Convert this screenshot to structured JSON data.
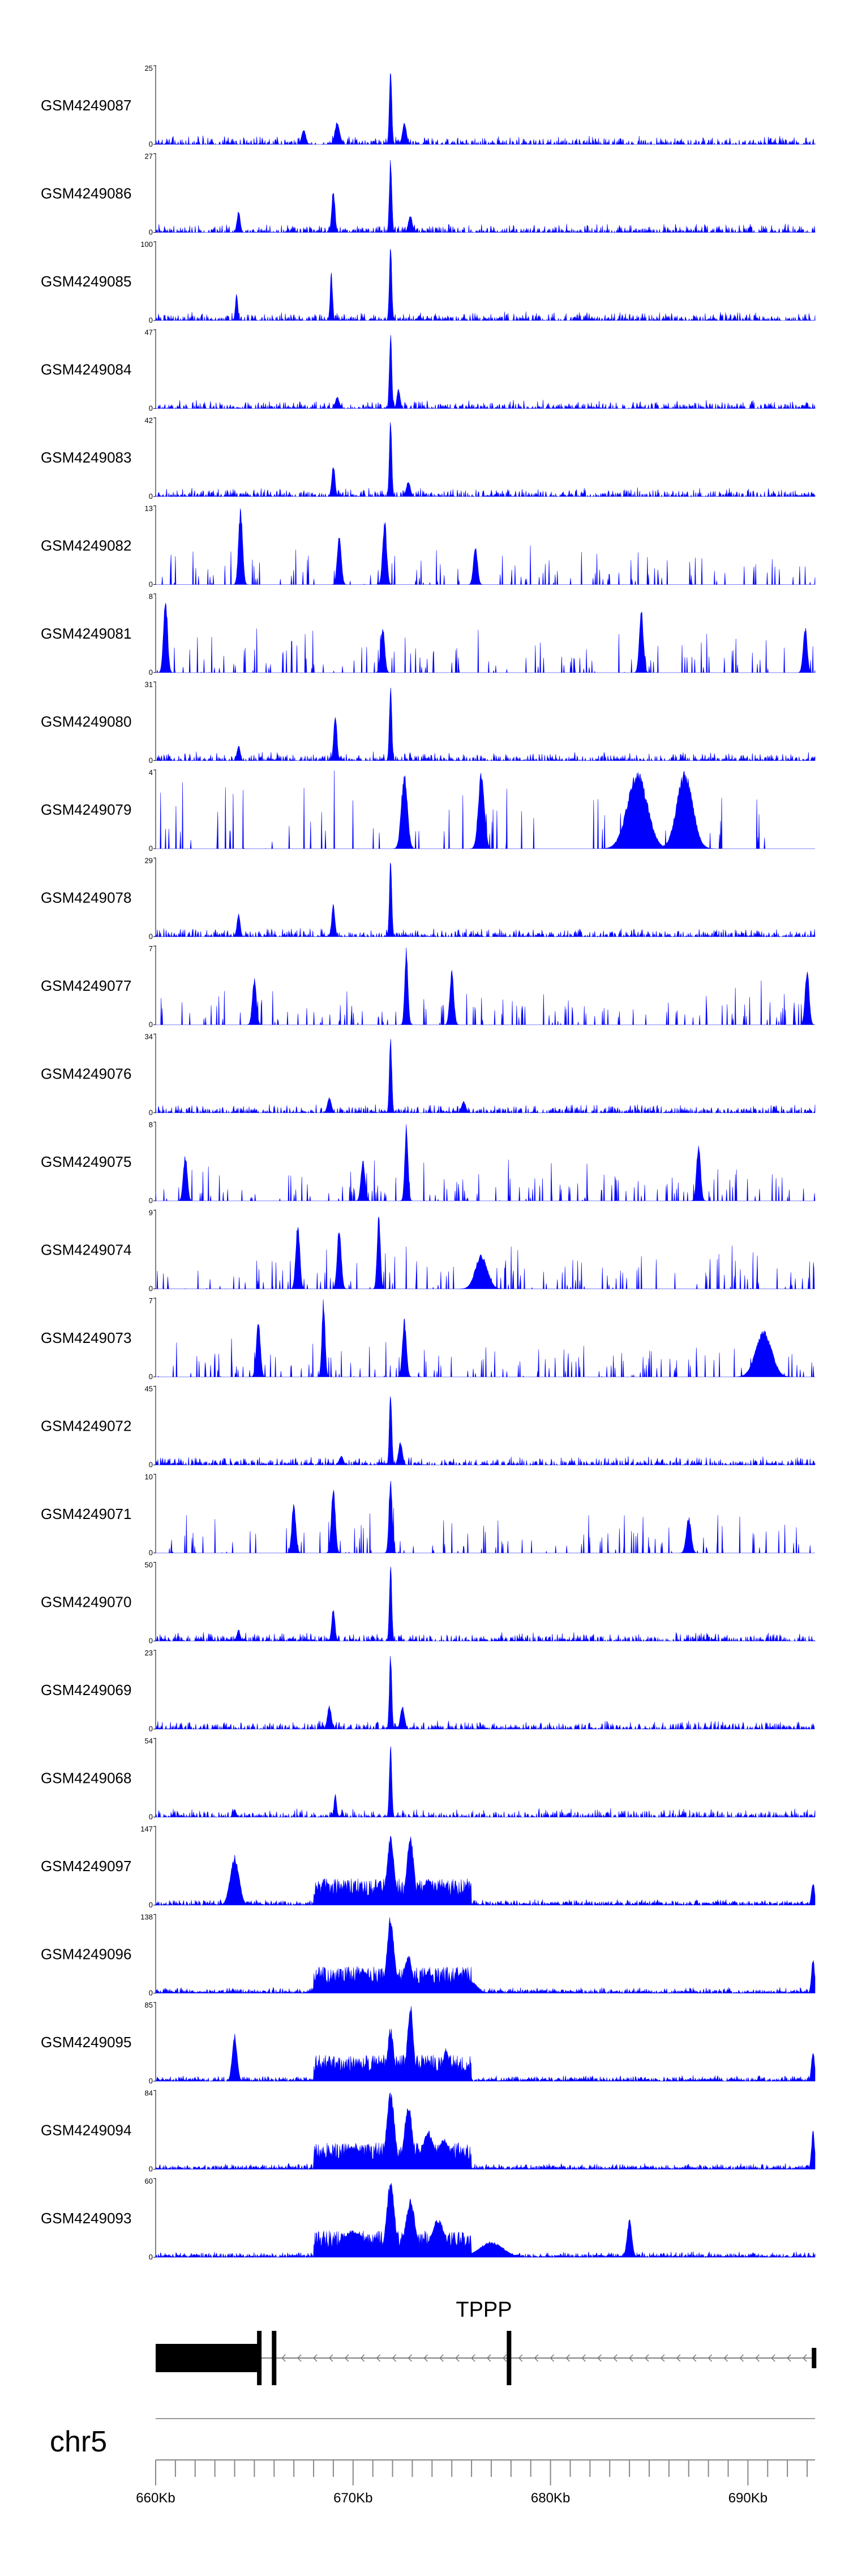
{
  "chart_data": {
    "type": "area",
    "chromosome": "chr5",
    "x_axis": {
      "unit": "Kb",
      "range_kb": [
        660,
        693.4
      ],
      "major_tick_labels": [
        "660Kb",
        "670Kb",
        "680Kb",
        "690Kb"
      ],
      "major_tick_values_kb": [
        660,
        670,
        680,
        690
      ]
    },
    "series_color": "#0000FF",
    "tracks": [
      {
        "name": "GSM4249087",
        "ymax": "25",
        "ymin": "0",
        "style": "dense",
        "peaks": [
          [
            671.9,
            1.0,
            0.06
          ],
          [
            669.2,
            0.3,
            0.12
          ],
          [
            672.6,
            0.28,
            0.1
          ],
          [
            667.5,
            0.2,
            0.1
          ]
        ]
      },
      {
        "name": "GSM4249086",
        "ymax": "27",
        "ymin": "0",
        "style": "dense",
        "peaks": [
          [
            671.9,
            1.0,
            0.06
          ],
          [
            669.0,
            0.55,
            0.08
          ],
          [
            664.2,
            0.28,
            0.08
          ],
          [
            672.9,
            0.22,
            0.1
          ]
        ]
      },
      {
        "name": "GSM4249085",
        "ymax": "100",
        "ymin": "0",
        "style": "dense",
        "peaks": [
          [
            671.9,
            1.0,
            0.06
          ],
          [
            668.9,
            0.62,
            0.06
          ],
          [
            664.1,
            0.35,
            0.06
          ]
        ]
      },
      {
        "name": "GSM4249084",
        "ymax": "47",
        "ymin": "0",
        "style": "dense",
        "peaks": [
          [
            671.9,
            1.0,
            0.06
          ],
          [
            672.3,
            0.25,
            0.08
          ],
          [
            669.2,
            0.15,
            0.1
          ]
        ]
      },
      {
        "name": "GSM4249083",
        "ymax": "42",
        "ymin": "0",
        "style": "dense",
        "peaks": [
          [
            671.9,
            1.0,
            0.06
          ],
          [
            669.0,
            0.42,
            0.08
          ],
          [
            672.8,
            0.2,
            0.1
          ]
        ]
      },
      {
        "name": "GSM4249082",
        "ymax": "13",
        "ymin": "0",
        "style": "sparse",
        "peaks": [
          [
            664.3,
            1.0,
            0.1
          ],
          [
            671.6,
            0.85,
            0.1
          ],
          [
            669.3,
            0.65,
            0.1
          ],
          [
            676.2,
            0.5,
            0.1
          ]
        ]
      },
      {
        "name": "GSM4249081",
        "ymax": "8",
        "ymin": "0",
        "style": "sparse",
        "peaks": [
          [
            660.5,
            1.0,
            0.1
          ],
          [
            684.6,
            0.82,
            0.1
          ],
          [
            692.9,
            0.6,
            0.1
          ],
          [
            671.5,
            0.6,
            0.1
          ]
        ]
      },
      {
        "name": "GSM4249080",
        "ymax": "31",
        "ymin": "0",
        "style": "dense",
        "peaks": [
          [
            671.9,
            1.0,
            0.06
          ],
          [
            669.1,
            0.62,
            0.08
          ],
          [
            664.2,
            0.2,
            0.08
          ]
        ]
      },
      {
        "name": "GSM4249079",
        "ymax": "4",
        "ymin": "0",
        "style": "spikes",
        "end_kb": 691.0,
        "peaks": [
          [
            684.4,
            1.0,
            0.5
          ],
          [
            686.8,
            1.0,
            0.4
          ],
          [
            672.6,
            1.0,
            0.15
          ],
          [
            676.5,
            1.0,
            0.15
          ]
        ]
      },
      {
        "name": "GSM4249078",
        "ymax": "29",
        "ymin": "0",
        "style": "dense",
        "peaks": [
          [
            671.9,
            1.0,
            0.06
          ],
          [
            669.0,
            0.42,
            0.08
          ],
          [
            664.2,
            0.3,
            0.08
          ]
        ]
      },
      {
        "name": "GSM4249077",
        "ymax": "7",
        "ymin": "0",
        "style": "sparse",
        "peaks": [
          [
            672.7,
            1.0,
            0.08
          ],
          [
            693.0,
            0.75,
            0.1
          ],
          [
            675.0,
            0.7,
            0.1
          ],
          [
            665.0,
            0.6,
            0.1
          ]
        ]
      },
      {
        "name": "GSM4249076",
        "ymax": "34",
        "ymin": "0",
        "style": "dense",
        "peaks": [
          [
            671.9,
            1.0,
            0.06
          ],
          [
            668.8,
            0.2,
            0.1
          ],
          [
            675.6,
            0.15,
            0.1
          ]
        ]
      },
      {
        "name": "GSM4249075",
        "ymax": "8",
        "ymin": "0",
        "style": "sparse",
        "peaks": [
          [
            672.7,
            1.0,
            0.08
          ],
          [
            687.5,
            0.75,
            0.1
          ],
          [
            661.5,
            0.6,
            0.1
          ],
          [
            670.5,
            0.55,
            0.1
          ]
        ]
      },
      {
        "name": "GSM4249074",
        "ymax": "9",
        "ymin": "0",
        "style": "sparse",
        "peaks": [
          [
            671.3,
            1.0,
            0.08
          ],
          [
            667.2,
            0.85,
            0.1
          ],
          [
            669.3,
            0.82,
            0.1
          ],
          [
            676.5,
            0.45,
            0.3
          ]
        ]
      },
      {
        "name": "GSM4249073",
        "ymax": "7",
        "ymin": "0",
        "style": "sparse",
        "peaks": [
          [
            668.5,
            1.0,
            0.08
          ],
          [
            665.2,
            0.75,
            0.1
          ],
          [
            690.8,
            0.6,
            0.4
          ],
          [
            672.6,
            0.75,
            0.1
          ]
        ]
      },
      {
        "name": "GSM4249072",
        "ymax": "45",
        "ymin": "0",
        "style": "dense",
        "peaks": [
          [
            671.9,
            1.0,
            0.06
          ],
          [
            672.4,
            0.3,
            0.1
          ],
          [
            669.4,
            0.12,
            0.1
          ]
        ]
      },
      {
        "name": "GSM4249071",
        "ymax": "10",
        "ymin": "0",
        "style": "sparse",
        "peaks": [
          [
            671.9,
            1.0,
            0.08
          ],
          [
            669.0,
            0.85,
            0.1
          ],
          [
            667.0,
            0.65,
            0.1
          ],
          [
            687.0,
            0.48,
            0.12
          ]
        ]
      },
      {
        "name": "GSM4249070",
        "ymax": "50",
        "ymin": "0",
        "style": "dense",
        "peaks": [
          [
            671.9,
            1.0,
            0.06
          ],
          [
            669.0,
            0.42,
            0.08
          ],
          [
            664.2,
            0.15,
            0.08
          ]
        ]
      },
      {
        "name": "GSM4249069",
        "ymax": "23",
        "ymin": "0",
        "style": "dense",
        "peaks": [
          [
            671.9,
            1.0,
            0.06
          ],
          [
            668.8,
            0.3,
            0.1
          ],
          [
            672.5,
            0.3,
            0.1
          ]
        ]
      },
      {
        "name": "GSM4249068",
        "ymax": "54",
        "ymin": "0",
        "style": "dense",
        "peaks": [
          [
            671.9,
            1.0,
            0.06
          ],
          [
            669.1,
            0.32,
            0.06
          ],
          [
            664.0,
            0.1,
            0.08
          ]
        ]
      },
      {
        "name": "GSM4249097",
        "ymax": "147",
        "ymin": "0",
        "style": "broad",
        "peaks": [
          [
            664.0,
            0.65,
            0.22
          ],
          [
            671.9,
            0.9,
            0.18
          ],
          [
            672.9,
            0.88,
            0.18
          ],
          [
            673.8,
            0.35,
            0.25
          ],
          [
            674.6,
            0.25,
            0.25
          ],
          [
            669.3,
            0.2,
            0.2
          ],
          [
            693.3,
            0.3,
            0.08
          ]
        ]
      },
      {
        "name": "GSM4249096",
        "ymax": "138",
        "ymin": "0",
        "style": "broad",
        "peaks": [
          [
            671.9,
            1.0,
            0.18
          ],
          [
            672.8,
            0.5,
            0.2
          ],
          [
            673.8,
            0.28,
            0.25
          ],
          [
            670.5,
            0.3,
            0.4
          ],
          [
            693.3,
            0.45,
            0.08
          ],
          [
            676.0,
            0.15,
            0.3
          ]
        ]
      },
      {
        "name": "GSM4249095",
        "ymax": "85",
        "ymin": "0",
        "style": "broad",
        "peaks": [
          [
            672.9,
            1.0,
            0.15
          ],
          [
            671.9,
            0.7,
            0.15
          ],
          [
            664.0,
            0.62,
            0.12
          ],
          [
            669.0,
            0.22,
            0.15
          ],
          [
            674.7,
            0.42,
            0.15
          ],
          [
            693.3,
            0.4,
            0.08
          ]
        ]
      },
      {
        "name": "GSM4249094",
        "ymax": "84",
        "ymin": "0",
        "style": "broad",
        "peaks": [
          [
            671.9,
            1.0,
            0.2
          ],
          [
            672.8,
            0.85,
            0.2
          ],
          [
            673.8,
            0.5,
            0.3
          ],
          [
            670.0,
            0.3,
            0.5
          ],
          [
            674.6,
            0.4,
            0.3
          ],
          [
            693.3,
            0.5,
            0.08
          ]
        ]
      },
      {
        "name": "GSM4249093",
        "ymax": "60",
        "ymin": "0",
        "style": "broad",
        "peaks": [
          [
            671.9,
            1.0,
            0.2
          ],
          [
            672.9,
            0.75,
            0.25
          ],
          [
            674.3,
            0.5,
            0.35
          ],
          [
            684.0,
            0.5,
            0.12
          ],
          [
            670.0,
            0.35,
            0.6
          ],
          [
            677.0,
            0.2,
            0.6
          ]
        ]
      }
    ],
    "gene": {
      "name": "TPPP",
      "strand": "-",
      "utr_block_kb": [
        660.0,
        665.3
      ],
      "exons_kb": [
        665.25,
        666.0,
        677.9,
        693.35
      ],
      "span_kb": [
        660.0,
        693.35
      ]
    }
  }
}
